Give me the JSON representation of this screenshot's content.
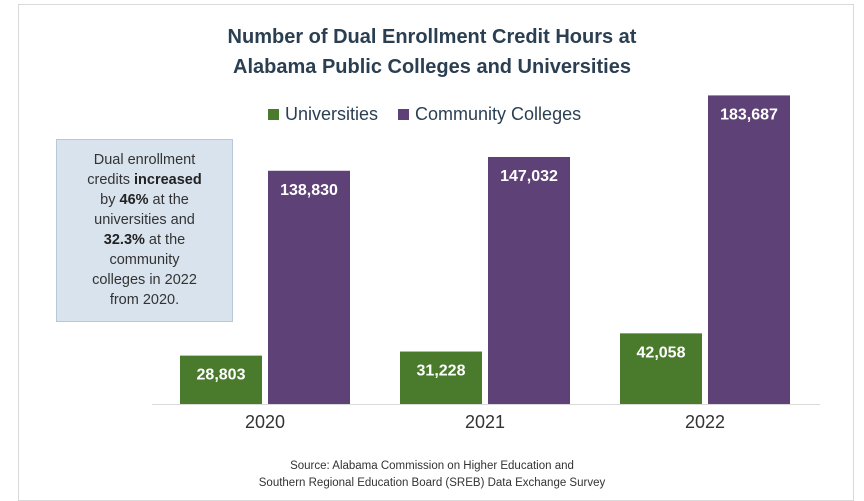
{
  "chart_data": {
    "type": "bar",
    "title_lines": [
      "Number of Dual Enrollment Credit Hours at",
      "Alabama Public Colleges and Universities"
    ],
    "categories": [
      "2020",
      "2021",
      "2022"
    ],
    "series": [
      {
        "name": "Universities",
        "color": "#4a7a2c",
        "values": [
          28803,
          31228,
          42058
        ],
        "labels": [
          "28,803",
          "31,228",
          "42,058"
        ]
      },
      {
        "name": "Community Colleges",
        "color": "#5e4177",
        "values": [
          138830,
          147032,
          183687
        ],
        "labels": [
          "138,830",
          "147,032",
          "183,687"
        ]
      }
    ],
    "ylim": [
      0,
      200000
    ],
    "legend_position": "top",
    "grid": false,
    "annotation": {
      "lines": [
        [
          {
            "text": "Dual enrollment"
          }
        ],
        [
          {
            "text": "credits "
          },
          {
            "text": "increased",
            "bold": true
          }
        ],
        [
          {
            "text": "by "
          },
          {
            "text": "46%",
            "bold": true
          },
          {
            "text": " at the"
          }
        ],
        [
          {
            "text": "universities and"
          }
        ],
        [
          {
            "text": "32.3%",
            "bold": true
          },
          {
            "text": " at the"
          }
        ],
        [
          {
            "text": "community"
          }
        ],
        [
          {
            "text": "colleges in 2022"
          }
        ],
        [
          {
            "text": "from 2020."
          }
        ]
      ]
    },
    "source_lines": [
      "Source: Alabama Commission on Higher Education and",
      "Southern Regional Education Board (SREB) Data Exchange Survey"
    ]
  }
}
